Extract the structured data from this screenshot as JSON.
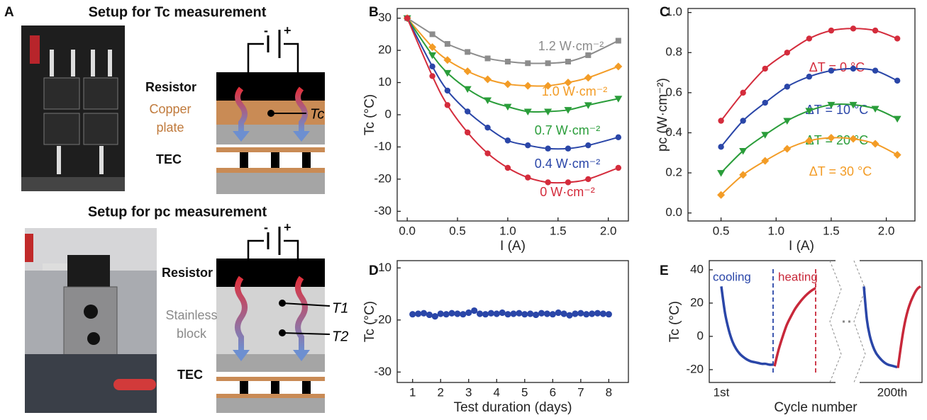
{
  "panel_a": {
    "letter": "A",
    "top": {
      "title": "Setup for Tc measurement",
      "battery_minus": "-",
      "battery_plus": "+",
      "resistor": "Resistor",
      "copper_plate": [
        "Copper",
        "plate"
      ],
      "tc": "Tc",
      "tec": "TEC"
    },
    "bottom": {
      "title": "Setup for pc measurement",
      "battery_minus": "-",
      "battery_plus": "+",
      "resistor": "Resistor",
      "stainless_block": [
        "Stainless",
        "block"
      ],
      "t1": "T1",
      "t2": "T2",
      "tec": "TEC"
    }
  },
  "chart_data": [
    {
      "type": "line",
      "panel": "B",
      "x_label": "I (A)",
      "y_label": "Tc (°C)",
      "xlim": [
        -0.1,
        2.2
      ],
      "ylim": [
        -33,
        33
      ],
      "xticks": [
        {
          "value": 0,
          "label": "0.0"
        },
        0.5,
        {
          "value": 1,
          "label": "1.0"
        },
        1.5,
        {
          "value": 2,
          "label": "2.0"
        }
      ],
      "yticks": [
        -30,
        -20,
        -10,
        0,
        10,
        20,
        30
      ],
      "x": [
        0,
        0.25,
        0.4,
        0.6,
        0.8,
        1.0,
        1.2,
        1.4,
        1.6,
        1.8,
        2.1
      ],
      "series": [
        {
          "name": "1.2 W·cm⁻²",
          "color": "#8c8c8c",
          "marker": "square",
          "values": [
            30,
            25,
            22,
            19.5,
            17.5,
            16.5,
            16,
            16,
            16.5,
            18.5,
            23
          ]
        },
        {
          "name": "1.0 W·cm⁻²",
          "color": "#f39c26",
          "marker": "diamond",
          "values": [
            30,
            21,
            17,
            13.5,
            11,
            9.5,
            9,
            9,
            10,
            11.5,
            15
          ]
        },
        {
          "name": "0.7 W·cm⁻²",
          "color": "#2a9d3a",
          "marker": "triangle-down",
          "values": [
            30,
            18.5,
            13,
            8,
            4.5,
            2.5,
            1,
            1,
            1.5,
            3,
            5
          ]
        },
        {
          "name": "0.4 W·cm⁻²",
          "color": "#2a46a8",
          "marker": "circle",
          "values": [
            30,
            15,
            7.5,
            1,
            -4,
            -8,
            -9.5,
            -10.5,
            -10.5,
            -9.5,
            -7
          ]
        },
        {
          "name": "0 W·cm⁻²",
          "color": "#d42c3c",
          "marker": "circle",
          "values": [
            30,
            12,
            3,
            -5.5,
            -12,
            -16.5,
            -19.5,
            -21,
            -21,
            -20,
            -16.5
          ]
        }
      ]
    },
    {
      "type": "line",
      "panel": "C",
      "x_label": "I (A)",
      "y_label": "pc (W·cm⁻²)",
      "xlim": [
        0.2,
        2.26
      ],
      "ylim": [
        -0.04,
        1.02
      ],
      "xticks": [
        0.5,
        {
          "value": 1,
          "label": "1.0"
        },
        1.5,
        {
          "value": 2,
          "label": "2.0"
        }
      ],
      "yticks": [
        {
          "value": 0,
          "label": "0.0"
        },
        0.2,
        0.4,
        0.6,
        0.8,
        {
          "value": 1,
          "label": "1.0"
        }
      ],
      "x": [
        0.5,
        0.7,
        0.9,
        1.1,
        1.3,
        1.5,
        1.7,
        1.9,
        2.1
      ],
      "series": [
        {
          "name": "ΔT = 0 °C",
          "color": "#d42c3c",
          "marker": "circle",
          "values": [
            0.46,
            0.6,
            0.72,
            0.8,
            0.87,
            0.91,
            0.92,
            0.91,
            0.87
          ]
        },
        {
          "name": "ΔT = 10 °C",
          "color": "#2a46a8",
          "marker": "circle",
          "values": [
            0.33,
            0.46,
            0.55,
            0.63,
            0.68,
            0.71,
            0.72,
            0.71,
            0.66
          ]
        },
        {
          "name": "ΔT = 20 °C",
          "color": "#2a9d3a",
          "marker": "triangle-down",
          "values": [
            0.2,
            0.31,
            0.39,
            0.46,
            0.51,
            0.54,
            0.54,
            0.52,
            0.47
          ]
        },
        {
          "name": "ΔT = 30 °C",
          "color": "#f39c26",
          "marker": "diamond",
          "values": [
            0.09,
            0.19,
            0.26,
            0.32,
            0.36,
            0.375,
            0.37,
            0.345,
            0.29
          ]
        }
      ]
    },
    {
      "type": "scatter",
      "panel": "D",
      "x_label": "Test duration (days)",
      "y_label": "Tc (°C)",
      "xlim": [
        0.45,
        8.7
      ],
      "ylim": [
        -32,
        -8.6
      ],
      "xticks": [
        1,
        2,
        3,
        4,
        5,
        6,
        7,
        8
      ],
      "yticks": [
        -30,
        -20,
        -10
      ],
      "color": "#2a46a8",
      "x": [
        1,
        1.2,
        1.4,
        1.6,
        1.8,
        2,
        2.2,
        2.4,
        2.6,
        2.8,
        3,
        3.2,
        3.4,
        3.6,
        3.8,
        4,
        4.2,
        4.4,
        4.6,
        4.8,
        5,
        5.2,
        5.4,
        5.6,
        5.8,
        6,
        6.2,
        6.4,
        6.6,
        6.8,
        7,
        7.2,
        7.4,
        7.6,
        7.8,
        8
      ],
      "values": [
        -18.9,
        -18.8,
        -18.7,
        -19.0,
        -19.3,
        -18.8,
        -18.9,
        -18.7,
        -18.8,
        -18.9,
        -18.6,
        -18.2,
        -18.8,
        -18.9,
        -18.7,
        -18.8,
        -18.6,
        -18.9,
        -18.8,
        -18.7,
        -18.9,
        -18.8,
        -19.0,
        -18.7,
        -18.8,
        -18.9,
        -18.6,
        -18.8,
        -19.1,
        -18.8,
        -18.7,
        -18.9,
        -18.8,
        -18.7,
        -18.8,
        -18.9
      ]
    },
    {
      "type": "cycles",
      "panel": "E",
      "x_label": "Cycle number",
      "y_label": "Tc (°C)",
      "ylim": [
        -27.7,
        45.5
      ],
      "yticks": [
        -20,
        0,
        20,
        40
      ],
      "cycle_labels": [
        "1st",
        "200th"
      ],
      "series": [
        {
          "name": "cooling",
          "color": "#2a46a8",
          "values": [
            [
              30,
              14,
              4,
              -3,
              -7.5,
              -10.5,
              -12.5,
              -14,
              -15,
              -15.5,
              -16,
              -16.5,
              -16.5,
              -17,
              -17
            ],
            [
              30,
              10,
              0,
              -6,
              -10,
              -12.5,
              -14.5,
              -16,
              -17,
              -17.5,
              -18,
              -18.5
            ]
          ]
        },
        {
          "name": "heating",
          "color": "#c8283a",
          "values": [
            [
              -18,
              -8,
              0,
              7,
              12,
              16.5,
              20,
              23,
              25.5,
              27.5,
              29
            ],
            [
              -19,
              -8,
              2,
              10,
              16,
              20.5,
              24,
              27,
              29,
              30
            ]
          ]
        }
      ]
    }
  ]
}
